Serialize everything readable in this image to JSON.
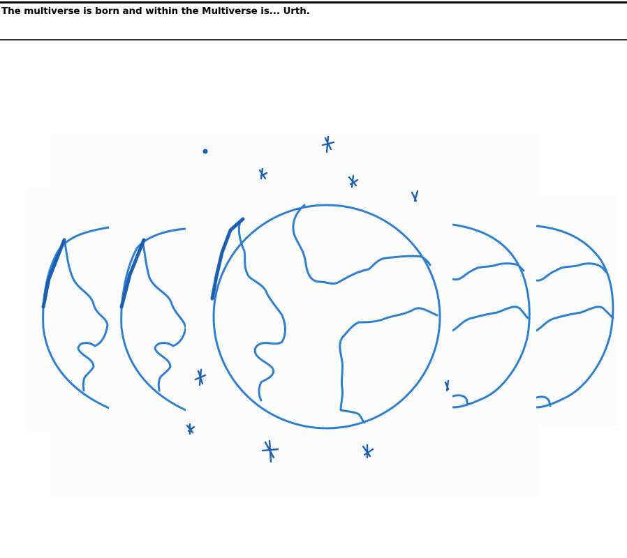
{
  "caption": "The multiverse is born and within the Multiverse is... Urth.",
  "illustration": {
    "subject": "hand-drawn earths in a row",
    "ink_color": "#2f7fd0",
    "ink_dark_color": "#1d5fb0",
    "panel_color": "#fcfcfd"
  }
}
